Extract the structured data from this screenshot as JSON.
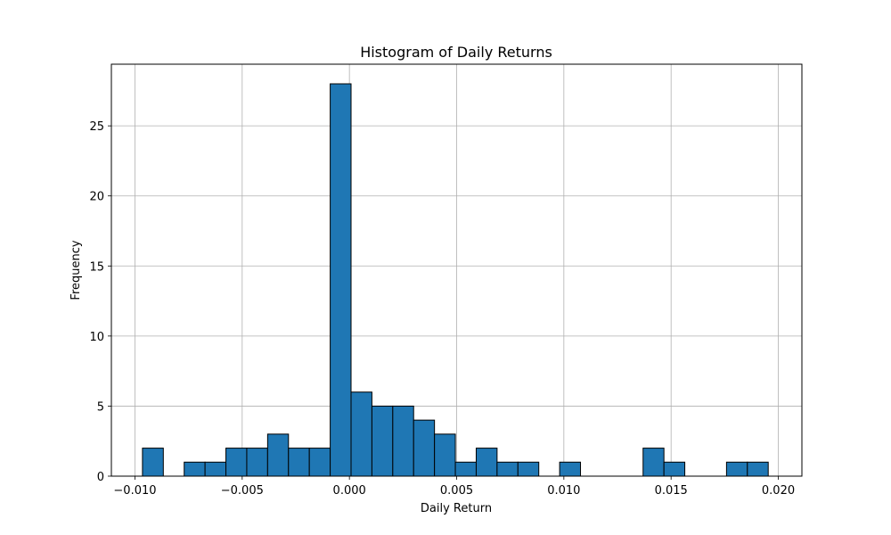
{
  "chart_data": {
    "type": "bar",
    "title": "Histogram of Daily Returns",
    "xlabel": "Daily Return",
    "ylabel": "Frequency",
    "xlim": [
      -0.0111,
      0.0211
    ],
    "ylim": [
      0,
      29.4
    ],
    "xticks": [
      -0.01,
      -0.005,
      0.0,
      0.005,
      0.01,
      0.015,
      0.02
    ],
    "xtick_labels": [
      "−0.010",
      "−0.005",
      "0.000",
      "0.005",
      "0.010",
      "0.015",
      "0.020"
    ],
    "yticks": [
      0,
      5,
      10,
      15,
      20,
      25
    ],
    "ytick_labels": [
      "0",
      "5",
      "10",
      "15",
      "20",
      "25"
    ],
    "grid": true,
    "bar_color": "#1f77b4",
    "edge_color": "#000000",
    "bins": {
      "start": -0.00965,
      "end": 0.01953,
      "count": 30
    },
    "values": [
      2,
      0,
      1,
      1,
      2,
      2,
      3,
      2,
      2,
      28,
      6,
      5,
      5,
      4,
      3,
      1,
      2,
      1,
      1,
      0,
      1,
      0,
      0,
      0,
      2,
      1,
      0,
      0,
      1,
      1
    ]
  }
}
